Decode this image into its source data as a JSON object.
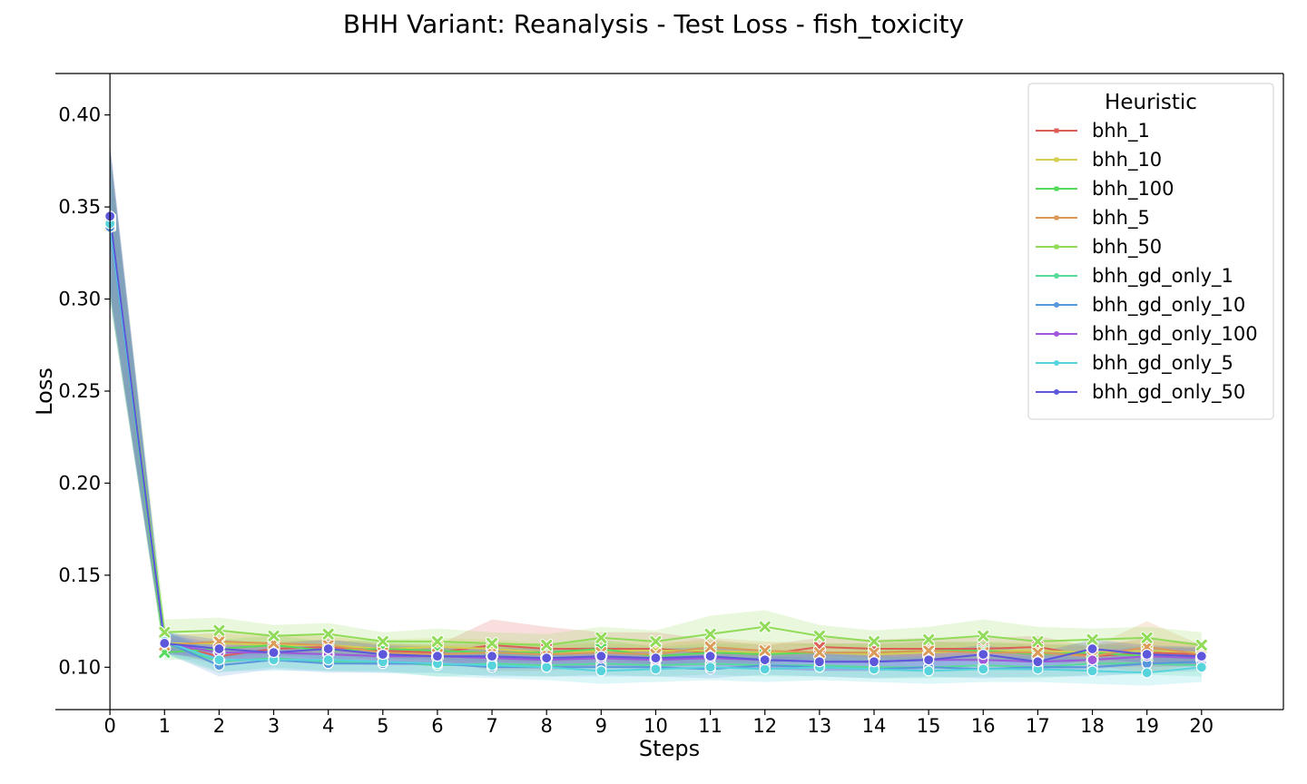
{
  "chart_data": {
    "type": "line",
    "title": "BHH Variant: Reanalysis - Test Loss - fish_toxicity",
    "xlabel": "Steps",
    "ylabel": "Loss",
    "x": [
      0,
      1,
      2,
      3,
      4,
      5,
      6,
      7,
      8,
      9,
      10,
      11,
      12,
      13,
      14,
      15,
      16,
      17,
      18,
      19,
      20
    ],
    "x_ticks": [
      "0",
      "1",
      "2",
      "3",
      "4",
      "5",
      "6",
      "7",
      "8",
      "9",
      "10",
      "11",
      "12",
      "13",
      "14",
      "15",
      "16",
      "17",
      "18",
      "19",
      "20"
    ],
    "y_ticks": [
      "0.10",
      "0.15",
      "0.20",
      "0.25",
      "0.30",
      "0.35",
      "0.40"
    ],
    "y_tick_values": [
      0.1,
      0.15,
      0.2,
      0.25,
      0.3,
      0.35,
      0.4
    ],
    "xlim": [
      -1,
      21.5
    ],
    "ylim": [
      0.077,
      0.4225
    ],
    "grid": false,
    "legend_title": "Heuristic",
    "legend_position": "top-right",
    "series": [
      {
        "name": "bhh_1",
        "color": "#db5f57",
        "marker": "x",
        "values": [
          0.341,
          0.113,
          0.106,
          0.11,
          0.111,
          0.109,
          0.108,
          0.112,
          0.11,
          0.11,
          0.11,
          0.108,
          0.107,
          0.111,
          0.11,
          0.11,
          0.11,
          0.111,
          0.106,
          0.108,
          0.107
        ],
        "band": [
          0.035,
          0.004,
          0.005,
          0.004,
          0.004,
          0.004,
          0.004,
          0.014,
          0.012,
          0.009,
          0.009,
          0.007,
          0.005,
          0.005,
          0.005,
          0.006,
          0.006,
          0.006,
          0.005,
          0.008,
          0.006
        ]
      },
      {
        "name": "bhh_10",
        "color": "#d3d050",
        "marker": "x",
        "values": [
          0.34,
          0.113,
          0.113,
          0.112,
          0.112,
          0.11,
          0.111,
          0.11,
          0.108,
          0.109,
          0.109,
          0.109,
          0.108,
          0.108,
          0.107,
          0.108,
          0.109,
          0.109,
          0.108,
          0.109,
          0.108
        ],
        "band": [
          0.04,
          0.005,
          0.005,
          0.005,
          0.005,
          0.005,
          0.005,
          0.005,
          0.005,
          0.005,
          0.005,
          0.005,
          0.005,
          0.005,
          0.005,
          0.005,
          0.005,
          0.005,
          0.005,
          0.005,
          0.005
        ]
      },
      {
        "name": "bhh_100",
        "color": "#57db5f",
        "marker": "x",
        "values": [
          0.342,
          0.108,
          0.11,
          0.112,
          0.109,
          0.11,
          0.109,
          0.108,
          0.108,
          0.11,
          0.106,
          0.108,
          0.107,
          0.108,
          0.108,
          0.109,
          0.109,
          0.107,
          0.108,
          0.106,
          0.106
        ],
        "band": [
          0.04,
          0.004,
          0.005,
          0.005,
          0.005,
          0.005,
          0.005,
          0.005,
          0.005,
          0.005,
          0.005,
          0.005,
          0.005,
          0.005,
          0.005,
          0.005,
          0.005,
          0.005,
          0.005,
          0.005,
          0.005
        ]
      },
      {
        "name": "bhh_5",
        "color": "#db9a57",
        "marker": "x",
        "values": [
          0.341,
          0.112,
          0.114,
          0.113,
          0.112,
          0.108,
          0.107,
          0.108,
          0.107,
          0.108,
          0.107,
          0.111,
          0.109,
          0.108,
          0.108,
          0.109,
          0.108,
          0.108,
          0.106,
          0.111,
          0.107
        ],
        "band": [
          0.04,
          0.005,
          0.005,
          0.005,
          0.005,
          0.005,
          0.005,
          0.005,
          0.005,
          0.005,
          0.005,
          0.005,
          0.005,
          0.005,
          0.005,
          0.005,
          0.005,
          0.005,
          0.005,
          0.014,
          0.005
        ]
      },
      {
        "name": "bhh_50",
        "color": "#90db57",
        "marker": "x",
        "values": [
          0.343,
          0.119,
          0.12,
          0.117,
          0.118,
          0.114,
          0.114,
          0.113,
          0.112,
          0.116,
          0.114,
          0.118,
          0.122,
          0.117,
          0.114,
          0.115,
          0.117,
          0.114,
          0.115,
          0.116,
          0.112
        ],
        "band": [
          0.04,
          0.007,
          0.007,
          0.006,
          0.006,
          0.005,
          0.007,
          0.006,
          0.006,
          0.006,
          0.006,
          0.01,
          0.009,
          0.006,
          0.006,
          0.007,
          0.009,
          0.008,
          0.006,
          0.006,
          0.007
        ]
      },
      {
        "name": "bhh_gd_only_1",
        "color": "#57db9a",
        "marker": "o",
        "values": [
          0.34,
          0.113,
          0.103,
          0.105,
          0.103,
          0.103,
          0.101,
          0.102,
          0.101,
          0.102,
          0.101,
          0.102,
          0.101,
          0.101,
          0.1,
          0.1,
          0.101,
          0.1,
          0.102,
          0.102,
          0.101
        ],
        "band": [
          0.04,
          0.006,
          0.006,
          0.005,
          0.005,
          0.005,
          0.006,
          0.006,
          0.006,
          0.006,
          0.006,
          0.006,
          0.006,
          0.006,
          0.006,
          0.006,
          0.006,
          0.006,
          0.006,
          0.006,
          0.006
        ]
      },
      {
        "name": "bhh_gd_only_10",
        "color": "#5797db",
        "marker": "o",
        "values": [
          0.339,
          0.114,
          0.101,
          0.104,
          0.102,
          0.102,
          0.102,
          0.1,
          0.1,
          0.1,
          0.1,
          0.099,
          0.101,
          0.1,
          0.099,
          0.1,
          0.099,
          0.1,
          0.1,
          0.102,
          0.103
        ],
        "band": [
          0.04,
          0.006,
          0.006,
          0.005,
          0.005,
          0.005,
          0.005,
          0.005,
          0.005,
          0.005,
          0.005,
          0.005,
          0.005,
          0.005,
          0.005,
          0.005,
          0.005,
          0.005,
          0.005,
          0.005,
          0.005
        ]
      },
      {
        "name": "bhh_gd_only_100",
        "color": "#9f57db",
        "marker": "o",
        "values": [
          0.344,
          0.113,
          0.108,
          0.108,
          0.107,
          0.106,
          0.106,
          0.105,
          0.104,
          0.105,
          0.104,
          0.105,
          0.104,
          0.103,
          0.103,
          0.104,
          0.104,
          0.103,
          0.104,
          0.106,
          0.105
        ],
        "band": [
          0.04,
          0.005,
          0.005,
          0.005,
          0.005,
          0.005,
          0.005,
          0.005,
          0.005,
          0.005,
          0.005,
          0.005,
          0.005,
          0.005,
          0.005,
          0.005,
          0.005,
          0.005,
          0.005,
          0.005,
          0.005
        ]
      },
      {
        "name": "bhh_gd_only_5",
        "color": "#57d3db",
        "marker": "o",
        "values": [
          0.341,
          0.114,
          0.104,
          0.104,
          0.104,
          0.103,
          0.102,
          0.101,
          0.1,
          0.098,
          0.099,
          0.1,
          0.099,
          0.1,
          0.099,
          0.098,
          0.099,
          0.099,
          0.098,
          0.097,
          0.1
        ],
        "band": [
          0.04,
          0.006,
          0.006,
          0.006,
          0.006,
          0.006,
          0.007,
          0.007,
          0.007,
          0.007,
          0.007,
          0.007,
          0.007,
          0.007,
          0.007,
          0.007,
          0.007,
          0.007,
          0.007,
          0.007,
          0.008
        ]
      },
      {
        "name": "bhh_gd_only_50",
        "color": "#5c57db",
        "marker": "o",
        "values": [
          0.345,
          0.113,
          0.11,
          0.108,
          0.11,
          0.107,
          0.106,
          0.106,
          0.105,
          0.106,
          0.105,
          0.106,
          0.104,
          0.103,
          0.103,
          0.104,
          0.107,
          0.103,
          0.11,
          0.107,
          0.106
        ],
        "band": [
          0.04,
          0.006,
          0.005,
          0.005,
          0.005,
          0.005,
          0.005,
          0.005,
          0.005,
          0.005,
          0.005,
          0.005,
          0.005,
          0.005,
          0.005,
          0.005,
          0.005,
          0.005,
          0.005,
          0.005,
          0.005
        ]
      }
    ]
  }
}
